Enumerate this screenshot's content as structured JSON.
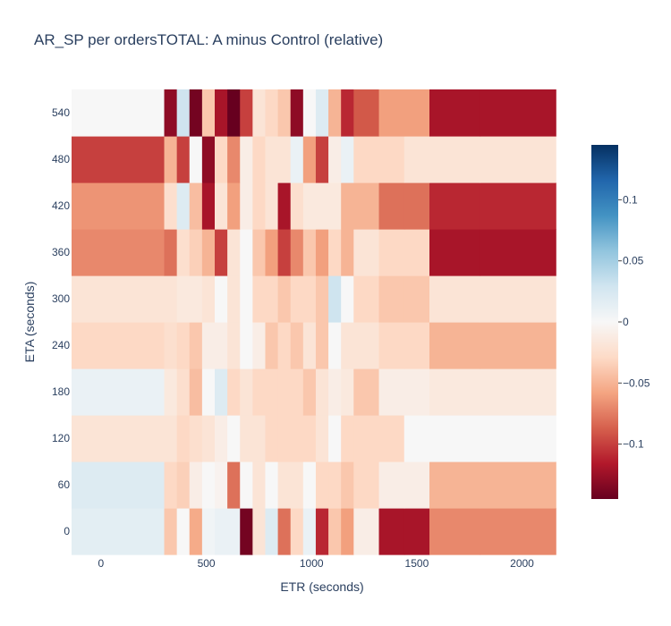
{
  "chart_data": {
    "type": "heatmap",
    "title": "AR_SP per ordersTOTAL: A minus Control (relative)",
    "xlabel": "ETR (seconds)",
    "ylabel": "ETA (seconds)",
    "x_ticks": [
      0,
      500,
      1000,
      1500,
      2000
    ],
    "y_ticks": [
      0,
      60,
      120,
      180,
      240,
      300,
      360,
      420,
      480,
      540
    ],
    "colorbar_ticks": [
      0.1,
      0.05,
      0,
      -0.05,
      -0.1
    ],
    "colorbar_tick_labels": [
      "0.1",
      "0.05",
      "0",
      "−0.05",
      "−0.1"
    ],
    "zlim": [
      -0.145,
      0.145
    ],
    "colorscale": "RdBu",
    "x": [
      0,
      300,
      360,
      420,
      480,
      540,
      600,
      660,
      720,
      780,
      840,
      900,
      960,
      1020,
      1080,
      1140,
      1200,
      1320,
      1440,
      1560,
      1800,
      2160,
      2280
    ],
    "y": [
      0,
      60,
      120,
      180,
      240,
      300,
      360,
      420,
      480,
      540
    ],
    "z": [
      [
        0.015,
        -0.04,
        0.0,
        -0.055,
        0.005,
        0.01,
        0.01,
        -0.14,
        -0.02,
        0.02,
        -0.08,
        -0.03,
        0.01,
        -0.11,
        -0.04,
        -0.06,
        -0.01,
        -0.12,
        -0.12,
        -0.07,
        -0.07,
        null
      ],
      [
        0.02,
        -0.03,
        -0.035,
        -0.01,
        0.0,
        -0.005,
        -0.08,
        0.0,
        -0.02,
        0.0,
        -0.02,
        -0.02,
        0.0,
        -0.03,
        -0.03,
        -0.04,
        -0.03,
        -0.01,
        -0.01,
        -0.05,
        -0.05,
        null
      ],
      [
        -0.02,
        -0.02,
        -0.03,
        -0.025,
        -0.02,
        -0.01,
        0.0,
        -0.02,
        -0.02,
        -0.03,
        -0.03,
        -0.03,
        -0.03,
        -0.02,
        0.0,
        -0.03,
        -0.03,
        -0.03,
        0.0,
        0.0,
        0.0,
        null
      ],
      [
        0.01,
        -0.015,
        -0.025,
        -0.045,
        0.0,
        0.02,
        -0.03,
        -0.02,
        -0.03,
        -0.03,
        -0.03,
        -0.03,
        -0.04,
        -0.02,
        -0.01,
        -0.015,
        -0.04,
        -0.01,
        -0.01,
        -0.015,
        -0.015,
        null
      ],
      [
        -0.03,
        -0.025,
        -0.03,
        -0.04,
        -0.01,
        -0.01,
        -0.02,
        0.0,
        -0.01,
        -0.04,
        -0.03,
        -0.04,
        -0.02,
        -0.04,
        0.0,
        -0.02,
        -0.02,
        -0.03,
        -0.03,
        -0.05,
        -0.05,
        null
      ],
      [
        -0.02,
        -0.02,
        -0.015,
        -0.015,
        -0.02,
        0.0,
        -0.02,
        0.0,
        -0.03,
        -0.03,
        -0.04,
        -0.03,
        -0.03,
        -0.04,
        0.03,
        0.0,
        -0.03,
        -0.04,
        -0.04,
        -0.02,
        -0.02,
        null
      ],
      [
        -0.07,
        -0.08,
        -0.025,
        -0.035,
        -0.05,
        -0.1,
        -0.02,
        0.0,
        -0.04,
        -0.06,
        -0.1,
        -0.07,
        -0.04,
        -0.06,
        -0.03,
        -0.05,
        -0.02,
        -0.03,
        -0.03,
        -0.12,
        -0.12,
        null
      ],
      [
        -0.065,
        -0.025,
        0.02,
        -0.045,
        -0.12,
        -0.02,
        -0.06,
        -0.01,
        -0.03,
        -0.02,
        -0.12,
        -0.025,
        -0.015,
        -0.015,
        -0.015,
        -0.05,
        -0.05,
        -0.08,
        -0.08,
        -0.11,
        -0.11,
        null
      ],
      [
        -0.1,
        -0.05,
        -0.1,
        0.0,
        -0.13,
        -0.03,
        -0.07,
        -0.01,
        -0.03,
        -0.02,
        -0.02,
        0.01,
        -0.06,
        -0.1,
        -0.01,
        0.01,
        -0.03,
        -0.03,
        -0.02,
        -0.02,
        -0.02,
        null
      ],
      [
        0.0,
        -0.13,
        0.03,
        -0.14,
        -0.04,
        -0.12,
        -0.145,
        -0.1,
        -0.02,
        -0.03,
        -0.04,
        -0.13,
        0.0,
        0.02,
        -0.05,
        -0.11,
        -0.09,
        -0.06,
        -0.06,
        -0.12,
        -0.12,
        null
      ]
    ]
  }
}
